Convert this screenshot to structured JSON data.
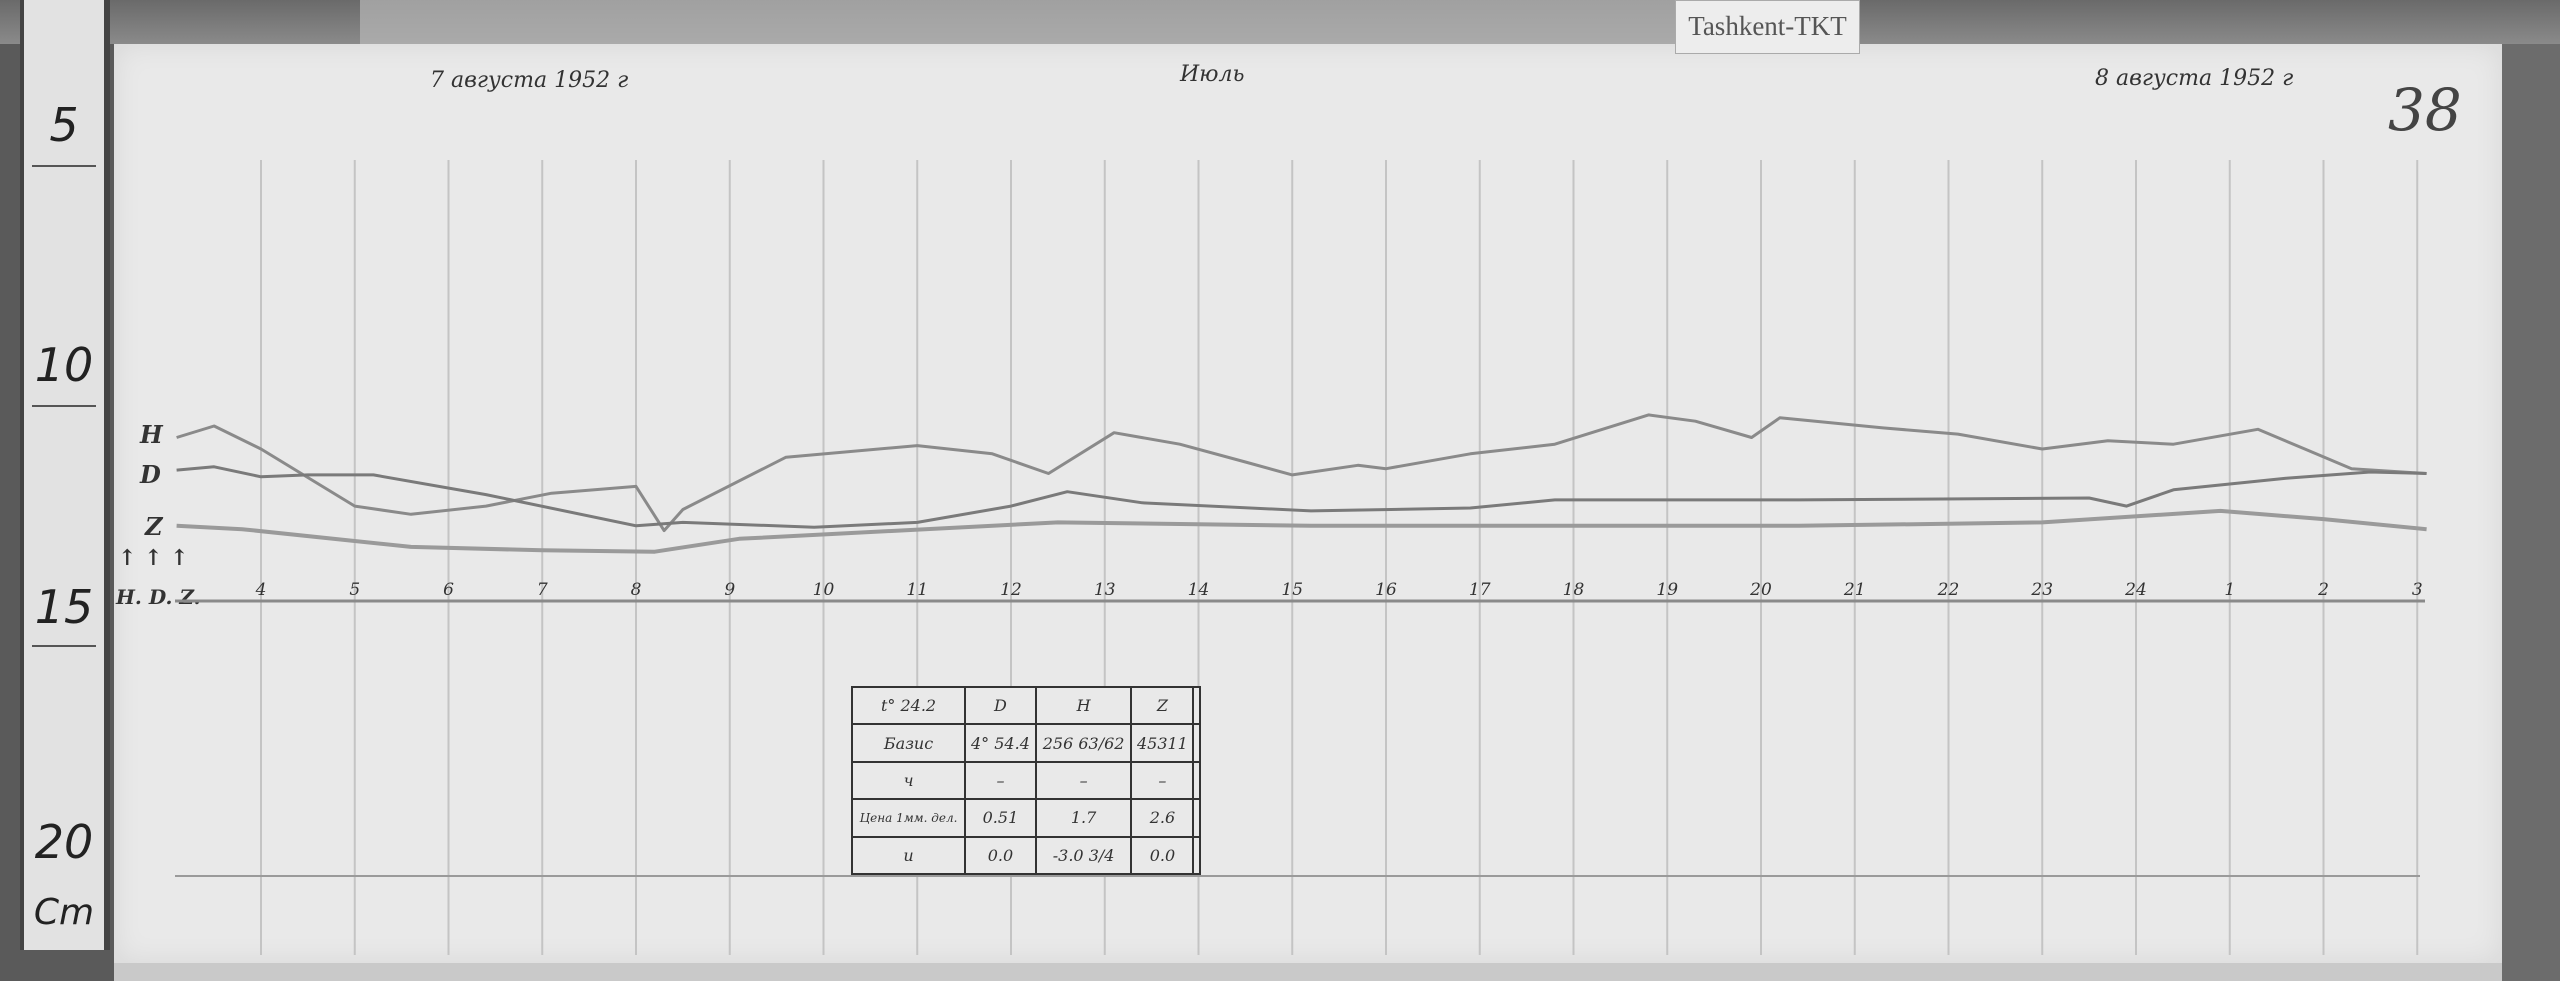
{
  "station_label": "Tashkent-TKT",
  "page_number": "38",
  "header": {
    "date_left": "7 августа 1952 г",
    "center_note": "Июль",
    "date_right": "8 августа 1952 г"
  },
  "ruler": {
    "marks": [
      "5",
      "10",
      "15",
      "20"
    ],
    "unit": "Cm"
  },
  "trace_labels": {
    "H": "H",
    "D": "D",
    "Z": "Z",
    "arrows": "↑ ↑ ↑",
    "baselines": "H. D. Z."
  },
  "base_table": {
    "rows": [
      [
        "t° 24.2",
        "D",
        "H",
        "Z",
        ""
      ],
      [
        "Базис",
        "4° 54.4",
        "256 63/62",
        "45311",
        ""
      ],
      [
        "ч",
        "–",
        "–",
        "–",
        ""
      ],
      [
        "Цена 1мм. дел.",
        "0.51",
        "1.7",
        "2.6",
        ""
      ],
      [
        "и",
        "0.0",
        "-3.0 3/4",
        "0.0",
        ""
      ]
    ]
  },
  "chart_data": {
    "type": "line",
    "title": "",
    "xlabel": "",
    "ylabel": "",
    "x_tick_labels": [
      "4",
      "5",
      "6",
      "7",
      "8",
      "9",
      "10",
      "11",
      "12",
      "13",
      "14",
      "15",
      "16",
      "17",
      "18",
      "19",
      "20",
      "21",
      "22",
      "23",
      "24",
      "1",
      "2",
      "3"
    ],
    "x_unit": "hour (continuous from 7 Aug 0h; ticks after 24 read 1,2,3)",
    "y_unit": "cm on ruler",
    "xlim": [
      3,
      27.1
    ],
    "grid": true,
    "series": [
      {
        "name": "H",
        "color": "#8a8a8a",
        "points": [
          [
            3.1,
            11.46
          ],
          [
            3.5,
            11.22
          ],
          [
            4.0,
            11.7
          ],
          [
            5.0,
            12.89
          ],
          [
            5.6,
            13.06
          ],
          [
            6.4,
            12.89
          ],
          [
            7.1,
            12.62
          ],
          [
            8.0,
            12.48
          ],
          [
            8.3,
            13.4
          ],
          [
            8.5,
            12.96
          ],
          [
            9.6,
            11.87
          ],
          [
            11.0,
            11.63
          ],
          [
            11.8,
            11.8
          ],
          [
            12.4,
            12.21
          ],
          [
            13.1,
            11.36
          ],
          [
            13.8,
            11.6
          ],
          [
            14.5,
            11.97
          ],
          [
            15.0,
            12.24
          ],
          [
            15.7,
            12.04
          ],
          [
            16.0,
            12.11
          ],
          [
            16.9,
            11.8
          ],
          [
            17.8,
            11.6
          ],
          [
            18.8,
            10.99
          ],
          [
            19.3,
            11.12
          ],
          [
            19.9,
            11.46
          ],
          [
            20.2,
            11.05
          ],
          [
            21.3,
            11.26
          ],
          [
            22.1,
            11.39
          ],
          [
            23.0,
            11.7
          ],
          [
            23.7,
            11.53
          ],
          [
            24.4,
            11.6
          ],
          [
            25.3,
            11.29
          ],
          [
            25.8,
            11.7
          ],
          [
            26.3,
            12.11
          ],
          [
            27.1,
            12.21
          ]
        ]
      },
      {
        "name": "D",
        "color": "#7a7a7a",
        "points": [
          [
            3.1,
            12.14
          ],
          [
            3.5,
            12.07
          ],
          [
            4.0,
            12.28
          ],
          [
            4.5,
            12.24
          ],
          [
            5.2,
            12.24
          ],
          [
            6.4,
            12.65
          ],
          [
            8.0,
            13.3
          ],
          [
            8.5,
            13.23
          ],
          [
            9.9,
            13.33
          ],
          [
            11.0,
            13.23
          ],
          [
            12.0,
            12.89
          ],
          [
            12.6,
            12.59
          ],
          [
            13.4,
            12.82
          ],
          [
            15.2,
            12.99
          ],
          [
            16.9,
            12.93
          ],
          [
            17.8,
            12.76
          ],
          [
            20.4,
            12.76
          ],
          [
            23.5,
            12.72
          ],
          [
            23.9,
            12.89
          ],
          [
            24.4,
            12.55
          ],
          [
            25.6,
            12.31
          ],
          [
            26.5,
            12.18
          ],
          [
            27.1,
            12.21
          ]
        ]
      },
      {
        "name": "Z",
        "color": "#9a9a9a",
        "points": [
          [
            3.1,
            13.3
          ],
          [
            3.8,
            13.37
          ],
          [
            5.6,
            13.74
          ],
          [
            7.0,
            13.81
          ],
          [
            8.2,
            13.84
          ],
          [
            9.1,
            13.57
          ],
          [
            10.8,
            13.4
          ],
          [
            12.5,
            13.23
          ],
          [
            15.2,
            13.3
          ],
          [
            20.4,
            13.3
          ],
          [
            23.0,
            13.23
          ],
          [
            24.9,
            12.99
          ],
          [
            26.0,
            13.16
          ],
          [
            27.1,
            13.37
          ]
        ]
      }
    ]
  }
}
